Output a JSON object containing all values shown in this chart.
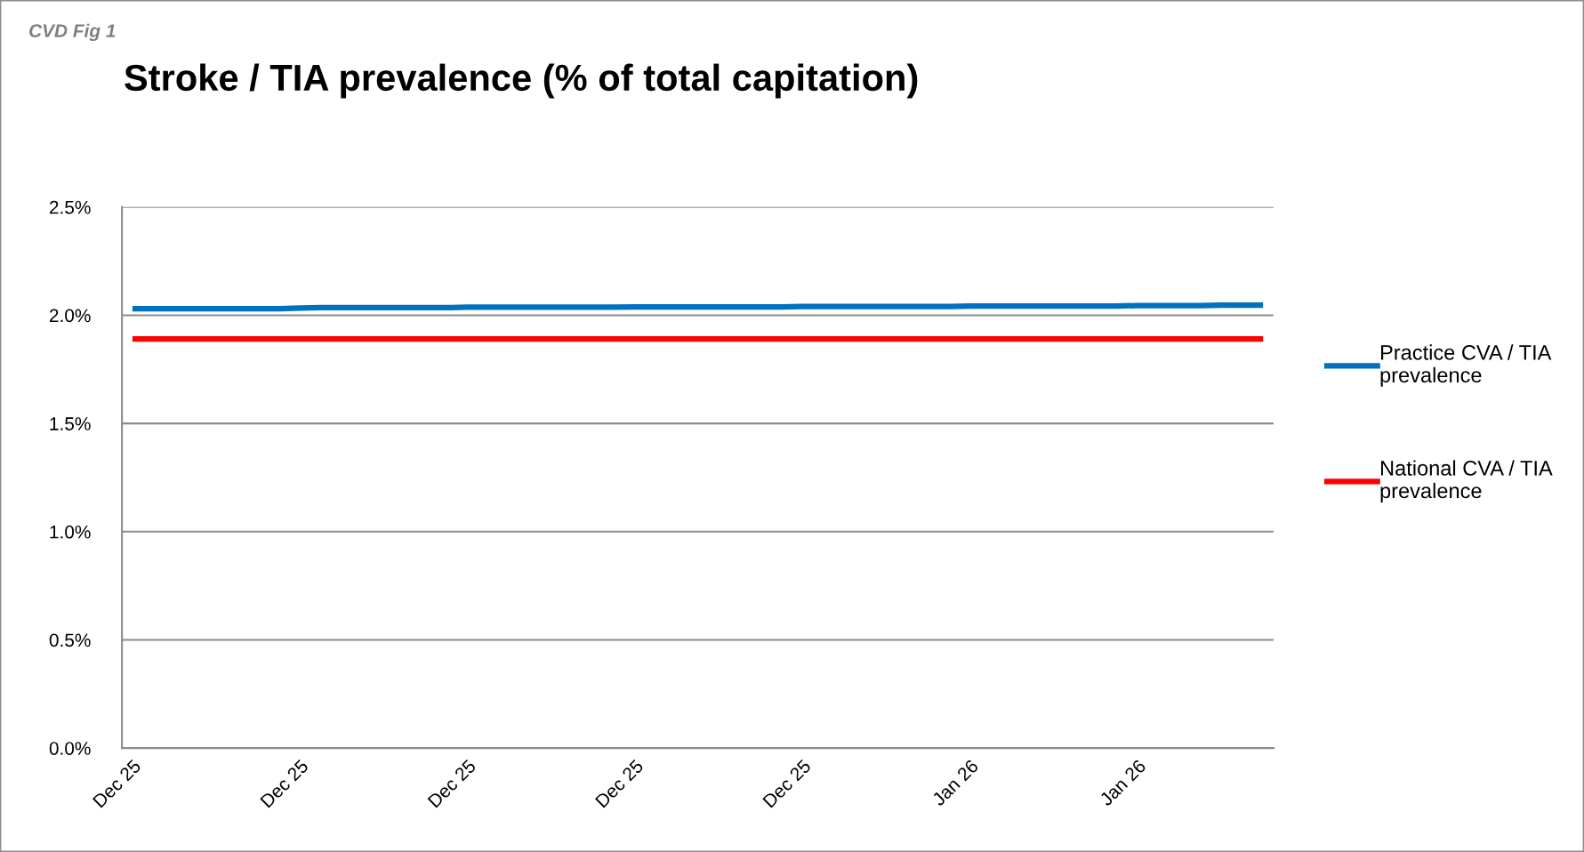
{
  "chart_data": {
    "type": "line",
    "title": "Stroke / TIA prevalence (% of total capitation)",
    "annotations": [
      "CVD Fig 1"
    ],
    "categories": [
      "Dec 25",
      null,
      null,
      null,
      null,
      null,
      null,
      null,
      "Dec 25",
      null,
      null,
      null,
      null,
      null,
      null,
      null,
      "Dec 25",
      null,
      null,
      null,
      null,
      null,
      null,
      null,
      "Dec 25",
      null,
      null,
      null,
      null,
      null,
      null,
      null,
      "Dec 25",
      null,
      null,
      null,
      null,
      null,
      null,
      null,
      "Jan 26",
      null,
      null,
      null,
      null,
      null,
      null,
      null,
      "Jan 26",
      null,
      null,
      null,
      null,
      null,
      null
    ],
    "series": [
      {
        "name": "Practice CVA / TIA\nprevalence",
        "color": "#0070c0",
        "values": [
          2.03,
          2.03,
          2.03,
          2.03,
          2.03,
          2.03,
          2.03,
          2.03,
          2.033,
          2.035,
          2.035,
          2.035,
          2.035,
          2.035,
          2.035,
          2.035,
          2.037,
          2.037,
          2.037,
          2.037,
          2.037,
          2.037,
          2.037,
          2.037,
          2.038,
          2.038,
          2.038,
          2.038,
          2.038,
          2.038,
          2.038,
          2.038,
          2.04,
          2.04,
          2.04,
          2.04,
          2.04,
          2.04,
          2.04,
          2.04,
          2.042,
          2.042,
          2.042,
          2.042,
          2.042,
          2.042,
          2.042,
          2.042,
          2.045,
          2.045,
          2.045,
          2.045,
          2.047,
          2.047,
          2.047
        ]
      },
      {
        "name": "National CVA / TIA\nprevalence",
        "color": "#ff0000",
        "values": [
          1.89,
          1.89,
          1.89,
          1.89,
          1.89,
          1.89,
          1.89,
          1.89,
          1.89,
          1.89,
          1.89,
          1.89,
          1.89,
          1.89,
          1.89,
          1.89,
          1.89,
          1.89,
          1.89,
          1.89,
          1.89,
          1.89,
          1.89,
          1.89,
          1.89,
          1.89,
          1.89,
          1.89,
          1.89,
          1.89,
          1.89,
          1.89,
          1.89,
          1.89,
          1.89,
          1.89,
          1.89,
          1.89,
          1.89,
          1.89,
          1.89,
          1.89,
          1.89,
          1.89,
          1.89,
          1.89,
          1.89,
          1.89,
          1.89,
          1.89,
          1.89,
          1.89,
          1.89,
          1.89,
          1.89
        ]
      }
    ],
    "ylim": [
      0,
      2.5
    ],
    "yticks": [
      {
        "value": 0,
        "label": "0.0%"
      },
      {
        "value": 0.5,
        "label": "0.5%"
      },
      {
        "value": 1,
        "label": "1.0%"
      },
      {
        "value": 1.5,
        "label": "1.5%"
      },
      {
        "value": 2,
        "label": "2.0%"
      },
      {
        "value": 2.5,
        "label": "2.5%"
      }
    ],
    "grid": "y",
    "legend": "right",
    "marker": "none",
    "line_style": "solid"
  }
}
